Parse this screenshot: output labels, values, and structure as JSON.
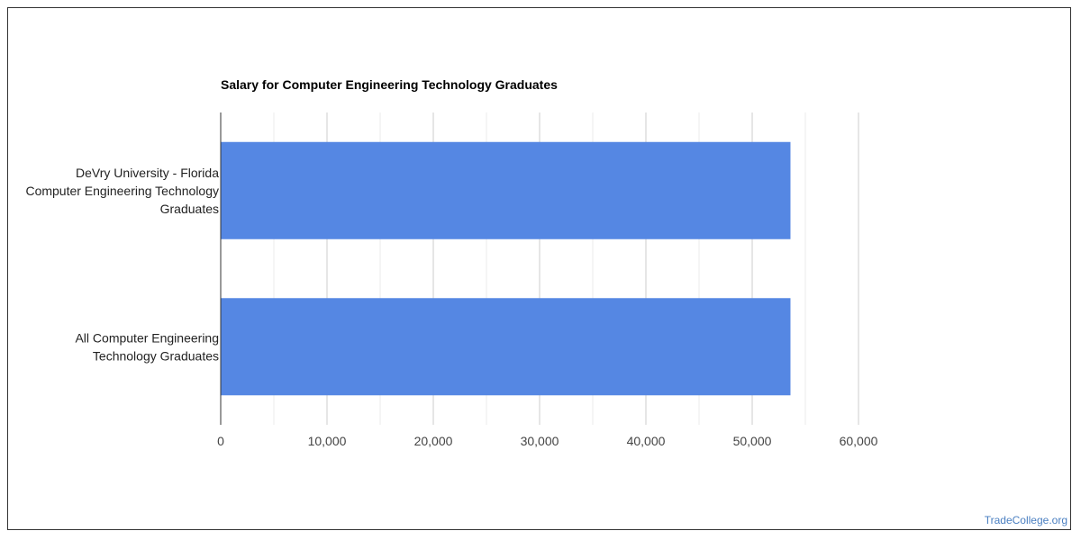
{
  "chart_data": {
    "type": "bar",
    "orientation": "horizontal",
    "title": "Salary for Computer Engineering Technology Graduates",
    "categories": [
      [
        "DeVry University - Florida",
        "Computer Engineering Technology",
        "Graduates"
      ],
      [
        "All Computer Engineering",
        "Technology Graduates"
      ]
    ],
    "values": [
      53600,
      53600
    ],
    "xlim": [
      0,
      60000
    ],
    "xticks": [
      0,
      10000,
      20000,
      30000,
      40000,
      50000,
      60000
    ],
    "xtick_labels": [
      "0",
      "10,000",
      "20,000",
      "30,000",
      "40,000",
      "50,000",
      "60,000"
    ],
    "minor_gridlines": true,
    "bar_color": "#5587e3",
    "grid": true,
    "xlabel": "",
    "ylabel": ""
  },
  "watermark": "TradeCollege.org"
}
